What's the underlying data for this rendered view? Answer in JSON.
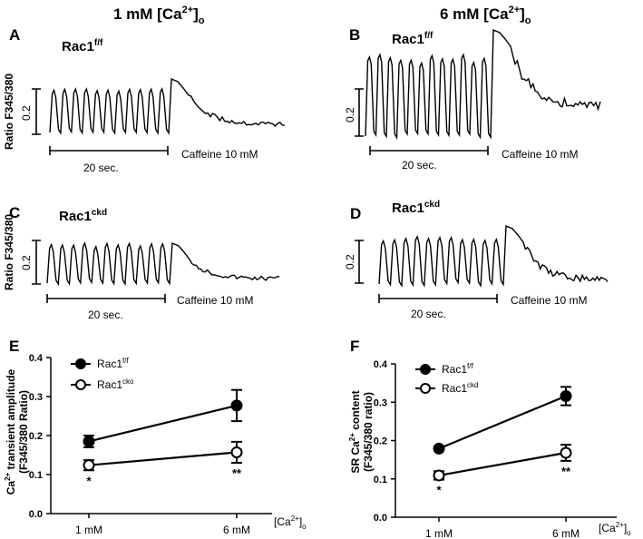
{
  "headers": {
    "left": {
      "main": "1 mM  [Ca",
      "sup": "2+",
      "close": "]",
      "sub": "o"
    },
    "right": {
      "main": "6 mM  [Ca",
      "sup": "2+",
      "close": "]",
      "sub": "o"
    }
  },
  "traces": [
    {
      "panel": "A",
      "genotype": "Rac1",
      "genotype_sup": "f/f",
      "y_label": "Ratio F345/380",
      "scale_value": "0.2",
      "time_scale": "20 sec.",
      "caffeine": "Caffeine 10 mM",
      "ca_condition": "1 mM",
      "n_beats": 11
    },
    {
      "panel": "B",
      "genotype": "Rac1",
      "genotype_sup": "f/f",
      "y_label": "",
      "scale_value": "0.2",
      "time_scale": "20 sec.",
      "caffeine": "Caffeine 10 mM",
      "ca_condition": "6 mM",
      "n_beats": 12
    },
    {
      "panel": "C",
      "genotype": "Rac1",
      "genotype_sup": "ckd",
      "y_label": "Ratio F345/380",
      "scale_value": "0.2",
      "time_scale": "20 sec.",
      "caffeine": "Caffeine 10 mM",
      "ca_condition": "1 mM",
      "n_beats": 11
    },
    {
      "panel": "D",
      "genotype": "Rac1",
      "genotype_sup": "ckd",
      "y_label": "",
      "scale_value": "0.2",
      "time_scale": "20 sec.",
      "caffeine": "Caffeine 10 mM",
      "ca_condition": "6 mM",
      "n_beats": 11
    }
  ],
  "chart_data": [
    {
      "panel": "E",
      "type": "line",
      "ylabel_line1_pre": "Ca",
      "ylabel_line1_sup": "2+",
      "ylabel_line1_post": " transient amplitude",
      "ylabel_line2": "(F345/380 Ratio)",
      "categories": [
        "1 mM",
        "6 mM"
      ],
      "xunit": {
        "pre": "[Ca",
        "sup": "2+",
        "close": "]",
        "sub": "o"
      },
      "ylim": [
        0.0,
        0.4
      ],
      "yticks": [
        "0.0",
        "0.1",
        "0.2",
        "0.3",
        "0.4"
      ],
      "series": [
        {
          "name": "Rac1",
          "sup": "f/f",
          "marker": "filled",
          "values": [
            0.185,
            0.277
          ],
          "errors": [
            0.015,
            0.04
          ]
        },
        {
          "name": "Rac1",
          "sup": "cko",
          "marker": "open",
          "values": [
            0.124,
            0.157
          ],
          "errors": [
            0.013,
            0.027
          ]
        }
      ],
      "significance": [
        "*",
        "**"
      ]
    },
    {
      "panel": "F",
      "type": "line",
      "ylabel_line1_pre": "SR Ca",
      "ylabel_line1_sup": "2+",
      "ylabel_line1_post": " content",
      "ylabel_line2": "(F345/380 ratio)",
      "categories": [
        "1 mM",
        "6 mM"
      ],
      "xunit": {
        "pre": "[Ca",
        "sup": "2+",
        "close": "]",
        "sub": "o"
      },
      "ylim": [
        0.0,
        0.4
      ],
      "yticks": [
        "0.0",
        "0.1",
        "0.2",
        "0.3",
        "0.4"
      ],
      "series": [
        {
          "name": "Rac1",
          "sup": "f/f",
          "marker": "filled",
          "values": [
            0.179,
            0.316
          ],
          "errors": [
            0.004,
            0.024
          ]
        },
        {
          "name": "Rac1",
          "sup": "ckd",
          "marker": "open",
          "values": [
            0.109,
            0.168
          ],
          "errors": [
            0.011,
            0.021
          ]
        }
      ],
      "significance": [
        "*",
        "**"
      ]
    }
  ]
}
